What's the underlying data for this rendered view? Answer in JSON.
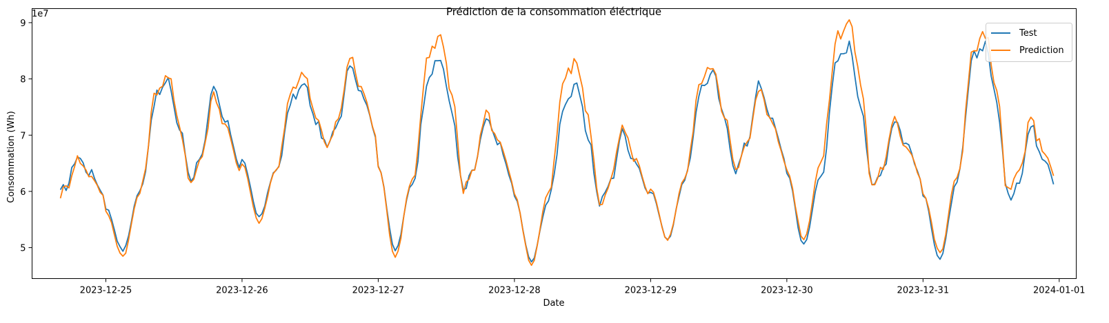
{
  "chart_data": {
    "type": "line",
    "title": "Prédiction de la consommation éléctrique",
    "xlabel": "Date",
    "ylabel": "Consommation (Wh)",
    "y_offset_label": "1e7",
    "x_range": [
      "2023-12-24T11:00",
      "2024-01-01T03:00"
    ],
    "ylim": [
      44500000,
      92500000
    ],
    "x_ticks": [
      "2023-12-25",
      "2023-12-26",
      "2023-12-27",
      "2023-12-28",
      "2023-12-29",
      "2023-12-30",
      "2023-12-31",
      "2024-01-01"
    ],
    "y_ticks": [
      {
        "value": 50000000,
        "label": "5"
      },
      {
        "value": 60000000,
        "label": "6"
      },
      {
        "value": 70000000,
        "label": "7"
      },
      {
        "value": 80000000,
        "label": "8"
      },
      {
        "value": 90000000,
        "label": "9"
      }
    ],
    "x": [
      "2023-12-24T16:00",
      "2023-12-31T23:00"
    ],
    "x_step_hours": 0.5,
    "grid": false,
    "legend_position": "top-right",
    "series": [
      {
        "name": "Test",
        "color": "#1f77b4",
        "daily_pattern": {
          "night_min": 49500000,
          "morning_peak": 79500000,
          "midday": 73000000,
          "evening_peak": 83000000
        },
        "daily_peaks": [
          {
            "date": "2023-12-25",
            "morning": 79500000,
            "evening": 78000000,
            "night": 49500000
          },
          {
            "date": "2023-12-26",
            "morning": 79000000,
            "evening": 83000000,
            "night": 55500000
          },
          {
            "date": "2023-12-27",
            "morning": 83500000,
            "evening": 73000000,
            "night": 49500000
          },
          {
            "date": "2023-12-28",
            "morning": 78500000,
            "evening": 70500000,
            "night": 47500000
          },
          {
            "date": "2023-12-29",
            "morning": 81000000,
            "evening": 79000000,
            "night": 51500000
          },
          {
            "date": "2023-12-30",
            "morning": 86000000,
            "evening": 73000000,
            "night": 50500000
          },
          {
            "date": "2023-12-31",
            "morning": 86500000,
            "evening": 71500000,
            "night": 48000000
          }
        ]
      },
      {
        "name": "Prediction",
        "color": "#ff7f0e",
        "daily_peaks": [
          {
            "date": "2023-12-25",
            "morning": 80500000,
            "evening": 77500000,
            "night": 48500000
          },
          {
            "date": "2023-12-26",
            "morning": 81000000,
            "evening": 84000000,
            "night": 54500000
          },
          {
            "date": "2023-12-27",
            "morning": 87500000,
            "evening": 74500000,
            "night": 48500000
          },
          {
            "date": "2023-12-28",
            "morning": 83000000,
            "evening": 71000000,
            "night": 47000000
          },
          {
            "date": "2023-12-29",
            "morning": 82500000,
            "evening": 78500000,
            "night": 51500000
          },
          {
            "date": "2023-12-30",
            "morning": 90500000,
            "evening": 72500000,
            "night": 51500000
          },
          {
            "date": "2023-12-31",
            "morning": 88000000,
            "evening": 72500000,
            "night": 49000000
          }
        ]
      }
    ]
  }
}
